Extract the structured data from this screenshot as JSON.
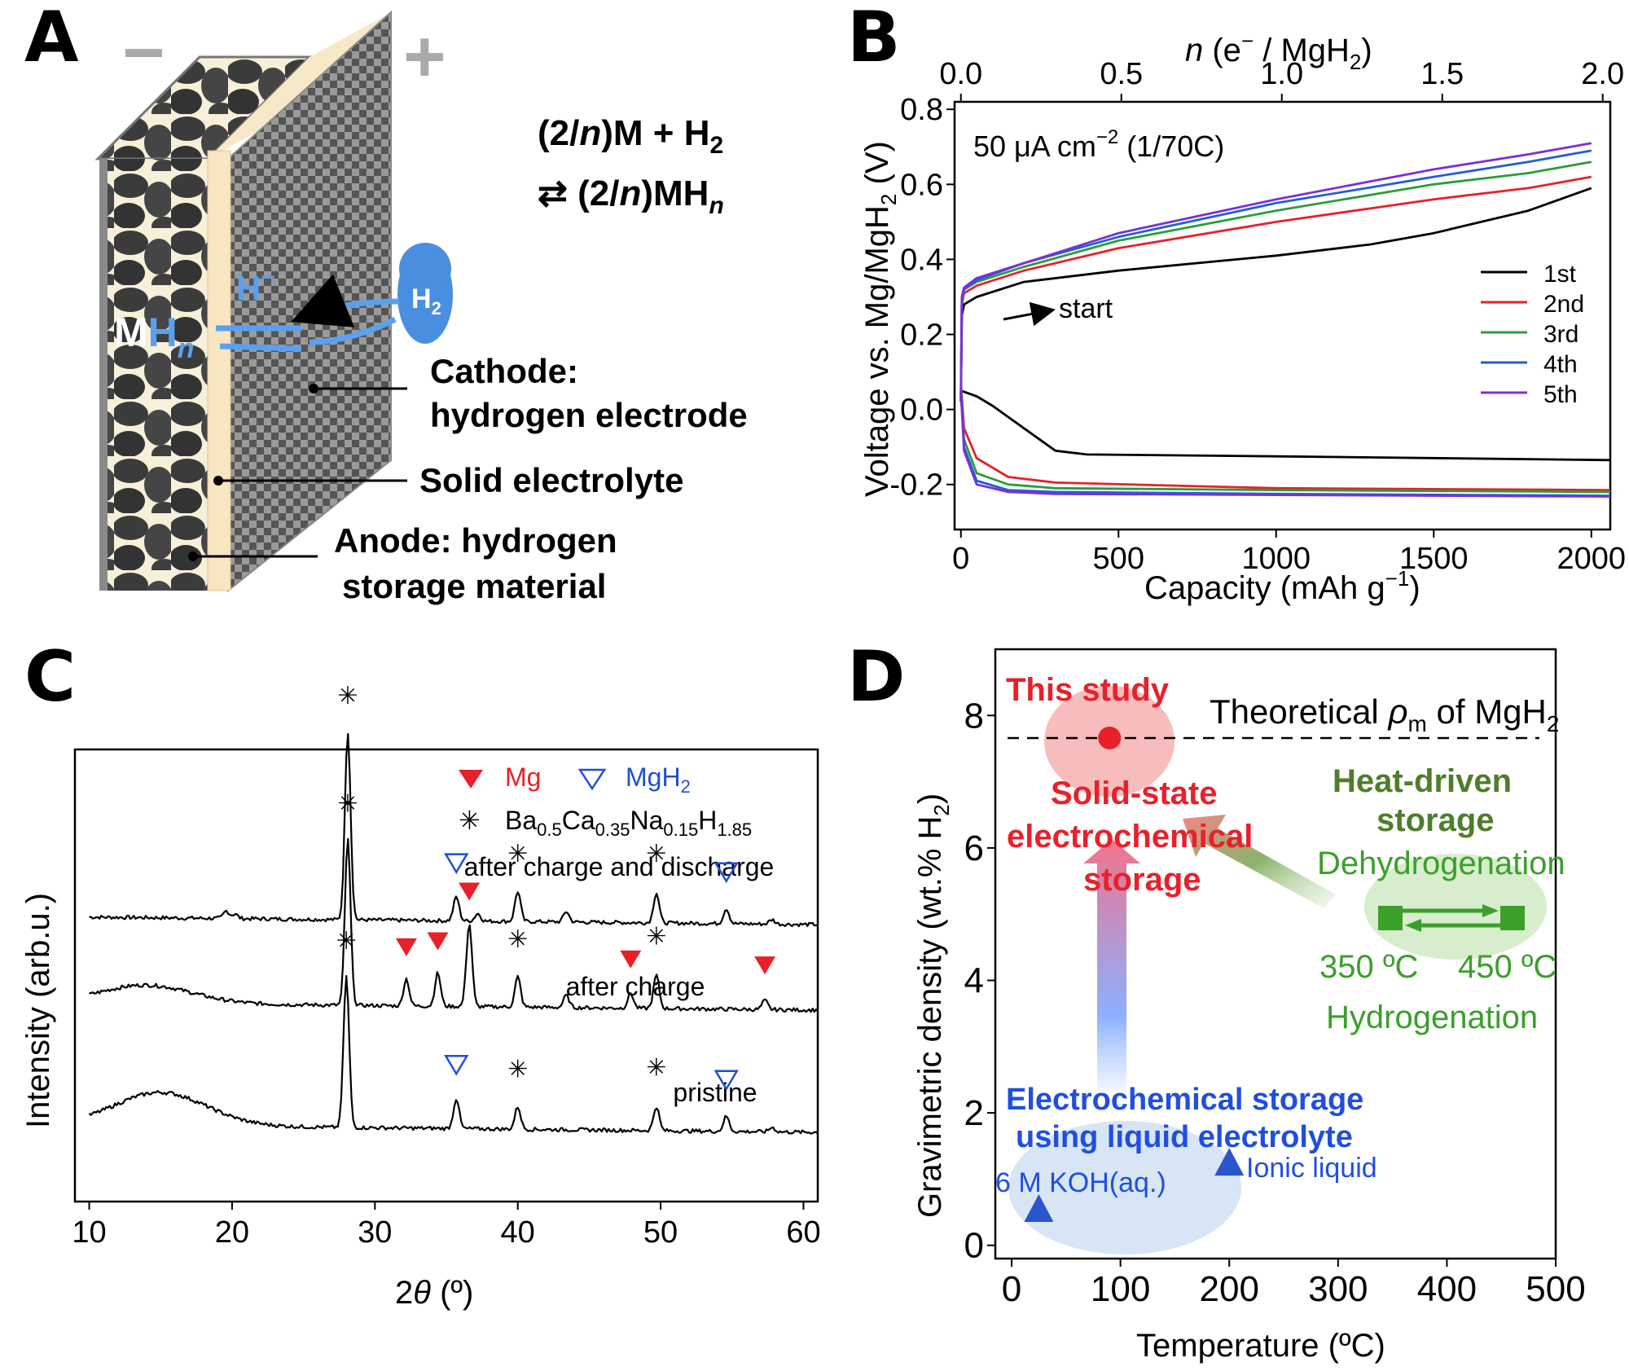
{
  "panels": {
    "A": {
      "letter": "A",
      "minus": "−",
      "plus": "+",
      "reaction_line1": "(2/n)M + H2",
      "reaction_line2": "⇄ (2/n)MHn",
      "ion": "H−",
      "h2": "H2",
      "mhn": "MHn",
      "cathode_line1": "Cathode:",
      "cathode_line2": "hydrogen electrode",
      "electrolyte": "Solid electrolyte",
      "anode_line1": "Anode: hydrogen",
      "anode_line2": "storage material"
    },
    "B": {
      "letter": "B"
    },
    "C": {
      "letter": "C"
    },
    "D": {
      "letter": "D"
    }
  },
  "chart_data": [
    {
      "panel": "B",
      "type": "line",
      "xlabel": "Capacity (mAh g−1)",
      "ylabel": "Voltage vs. Mg/MgH2 (V)",
      "top_xlabel": "n (e− / MgH2)",
      "xlim": [
        -20,
        2060
      ],
      "ylim": [
        -0.32,
        0.82
      ],
      "xticks": [
        0,
        500,
        1000,
        1500,
        2000
      ],
      "xtick_labels": [
        "0",
        "500",
        "1000",
        "1500",
        "2000"
      ],
      "yticks": [
        -0.2,
        0.0,
        0.2,
        0.4,
        0.6,
        0.8
      ],
      "ytick_labels": [
        "-0.2",
        "0.0",
        "0.2",
        "0.4",
        "0.6",
        "0.8"
      ],
      "top_ticks": [
        0,
        0.5,
        1.0,
        1.5,
        2.0
      ],
      "top_tick_labels": [
        "0.0",
        "0.5",
        "1.0",
        "1.5",
        "2.0"
      ],
      "top_tick_capacity": [
        0,
        509,
        1018,
        1527,
        2036
      ],
      "annotation": "50 μA cm−2 (1/70C)",
      "arrow_label": "start",
      "legend_position": "right",
      "series": [
        {
          "name": "1st",
          "color": "#000000",
          "charge": [
            [
              0,
              0.02
            ],
            [
              3,
              0.25
            ],
            [
              10,
              0.28
            ],
            [
              50,
              0.3
            ],
            [
              200,
              0.34
            ],
            [
              500,
              0.37
            ],
            [
              1000,
              0.41
            ],
            [
              1300,
              0.44
            ],
            [
              1500,
              0.47
            ],
            [
              1800,
              0.53
            ],
            [
              2000,
              0.59
            ]
          ],
          "discharge": [
            [
              0,
              0.05
            ],
            [
              50,
              0.035
            ],
            [
              100,
              0.01
            ],
            [
              200,
              -0.05
            ],
            [
              300,
              -0.11
            ],
            [
              400,
              -0.12
            ],
            [
              1000,
              -0.125
            ],
            [
              2060,
              -0.135
            ]
          ]
        },
        {
          "name": "2nd",
          "color": "#e8202a",
          "charge": [
            [
              0,
              0.02
            ],
            [
              3,
              0.28
            ],
            [
              10,
              0.31
            ],
            [
              50,
              0.33
            ],
            [
              200,
              0.37
            ],
            [
              500,
              0.43
            ],
            [
              1000,
              0.5
            ],
            [
              1500,
              0.56
            ],
            [
              1800,
              0.59
            ],
            [
              2000,
              0.62
            ]
          ],
          "discharge": [
            [
              0,
              0.07
            ],
            [
              10,
              -0.05
            ],
            [
              50,
              -0.13
            ],
            [
              150,
              -0.18
            ],
            [
              300,
              -0.195
            ],
            [
              1000,
              -0.21
            ],
            [
              2060,
              -0.215
            ]
          ]
        },
        {
          "name": "3rd",
          "color": "#2a9d3a",
          "charge": [
            [
              0,
              0.02
            ],
            [
              3,
              0.29
            ],
            [
              10,
              0.32
            ],
            [
              50,
              0.34
            ],
            [
              200,
              0.38
            ],
            [
              500,
              0.45
            ],
            [
              1000,
              0.53
            ],
            [
              1500,
              0.6
            ],
            [
              1800,
              0.63
            ],
            [
              2000,
              0.66
            ]
          ],
          "discharge": [
            [
              0,
              0.06
            ],
            [
              10,
              -0.08
            ],
            [
              50,
              -0.17
            ],
            [
              150,
              -0.2
            ],
            [
              300,
              -0.21
            ],
            [
              1000,
              -0.215
            ],
            [
              2060,
              -0.22
            ]
          ]
        },
        {
          "name": "4th",
          "color": "#1f5fd6",
          "charge": [
            [
              0,
              0.02
            ],
            [
              3,
              0.3
            ],
            [
              10,
              0.32
            ],
            [
              50,
              0.345
            ],
            [
              200,
              0.39
            ],
            [
              500,
              0.46
            ],
            [
              1000,
              0.55
            ],
            [
              1500,
              0.62
            ],
            [
              1800,
              0.66
            ],
            [
              2000,
              0.69
            ]
          ],
          "discharge": [
            [
              0,
              0.05
            ],
            [
              10,
              -0.1
            ],
            [
              50,
              -0.19
            ],
            [
              150,
              -0.215
            ],
            [
              300,
              -0.22
            ],
            [
              1000,
              -0.225
            ],
            [
              2060,
              -0.23
            ]
          ]
        },
        {
          "name": "5th",
          "color": "#7b2fd6",
          "charge": [
            [
              0,
              0.02
            ],
            [
              3,
              0.3
            ],
            [
              10,
              0.325
            ],
            [
              50,
              0.35
            ],
            [
              200,
              0.39
            ],
            [
              500,
              0.47
            ],
            [
              1000,
              0.56
            ],
            [
              1500,
              0.64
            ],
            [
              1800,
              0.68
            ],
            [
              2000,
              0.71
            ]
          ],
          "discharge": [
            [
              0,
              0.05
            ],
            [
              10,
              -0.11
            ],
            [
              50,
              -0.2
            ],
            [
              150,
              -0.22
            ],
            [
              300,
              -0.225
            ],
            [
              1000,
              -0.228
            ],
            [
              2060,
              -0.232
            ]
          ]
        }
      ]
    },
    {
      "panel": "C",
      "type": "line",
      "xlabel": "2θ (°)",
      "ylabel": "Intensity (arb.u.)",
      "xlim": [
        9,
        61
      ],
      "xticks": [
        10,
        20,
        30,
        40,
        50,
        60
      ],
      "xtick_labels": [
        "10",
        "20",
        "30",
        "40",
        "50",
        "60"
      ],
      "grid": false,
      "legend": {
        "mg": "Mg",
        "mgh2": "MgH2",
        "electrolyte": "Ba0.5Ca0.35Na0.15H1.85",
        "mg_color": "#e8202a",
        "mgh2_color": "#1f4fd6"
      },
      "series": [
        {
          "name": "after charge and discharge",
          "offset": 2.0,
          "peaks": [
            [
              19.6,
              0.05
            ],
            [
              20.2,
              0.03
            ],
            [
              28.1,
              1.25
            ],
            [
              35.7,
              0.16
            ],
            [
              37.2,
              0.05
            ],
            [
              40.0,
              0.2
            ],
            [
              43.4,
              0.07
            ],
            [
              49.7,
              0.2
            ],
            [
              54.6,
              0.1
            ],
            [
              57.8,
              0.03
            ]
          ]
        },
        {
          "name": "after charge",
          "offset": 1.0,
          "peaks": [
            [
              28.1,
              1.1
            ],
            [
              32.2,
              0.18
            ],
            [
              34.4,
              0.22
            ],
            [
              36.6,
              0.55
            ],
            [
              40.0,
              0.2
            ],
            [
              43.4,
              0.08
            ],
            [
              47.9,
              0.1
            ],
            [
              49.7,
              0.22
            ],
            [
              57.3,
              0.06
            ]
          ]
        },
        {
          "name": "pristine",
          "offset": 0.0,
          "peaks": [
            [
              28.0,
              1.0
            ],
            [
              35.7,
              0.2
            ],
            [
              40.0,
              0.15
            ],
            [
              49.7,
              0.16
            ],
            [
              54.6,
              0.1
            ],
            [
              57.8,
              0.03
            ]
          ]
        }
      ],
      "markers": {
        "after charge and discharge": {
          "mgh2": [
            35.7,
            54.6
          ],
          "electrolyte": [
            28.1,
            40.0,
            49.7
          ]
        },
        "after charge": {
          "mg": [
            32.2,
            34.4,
            36.6,
            47.9,
            57.3
          ],
          "electrolyte": [
            28.1,
            40.0,
            49.7
          ]
        },
        "pristine": {
          "mgh2": [
            35.7,
            54.6
          ],
          "electrolyte": [
            28.0,
            40.0,
            49.7
          ]
        }
      }
    },
    {
      "panel": "D",
      "type": "scatter",
      "xlabel": "Temperature (ºC)",
      "ylabel": "Gravimetric density (wt.% H2)",
      "xlim": [
        -15,
        500
      ],
      "ylim": [
        -0.2,
        9.0
      ],
      "xticks": [
        0,
        100,
        200,
        300,
        400,
        500
      ],
      "xtick_labels": [
        "0",
        "100",
        "200",
        "300",
        "400",
        "500"
      ],
      "yticks": [
        0,
        2,
        4,
        6,
        8
      ],
      "ytick_labels": [
        "0",
        "2",
        "4",
        "6",
        "8"
      ],
      "reference_line": {
        "y": 7.66,
        "label": "Theoretical ρm of MgH2"
      },
      "points": [
        {
          "name": "This study",
          "x": 90,
          "y": 7.66,
          "marker": "circle",
          "color": "#e8202a"
        },
        {
          "name": "6 M KOH(aq.)",
          "x": 25,
          "y": 0.55,
          "marker": "triangle",
          "color": "#2a55cc"
        },
        {
          "name": "Ionic liquid",
          "x": 200,
          "y": 1.25,
          "marker": "triangle",
          "color": "#2a55cc"
        }
      ],
      "labels": {
        "this_study": "This study",
        "solid_line1": "Solid-state",
        "solid_line2": "electrochemical",
        "solid_line3": "storage",
        "heat_line1": "Heat-driven",
        "heat_line2": "storage",
        "dehydrogenation": "Dehydrogenation",
        "temp_low": "350 ºC",
        "temp_high": "450 ºC",
        "hydrogenation": "Hydrogenation",
        "liquid_line1": "Electrochemical storage",
        "liquid_line2": "using liquid electrolyte",
        "koh": "6 M KOH(aq.)",
        "ionic": "Ionic liquid"
      },
      "colors": {
        "red": "#e8202a",
        "blue": "#1f4fe0",
        "green": "#4aa532",
        "heat_green": "#4f7d2a"
      }
    }
  ]
}
